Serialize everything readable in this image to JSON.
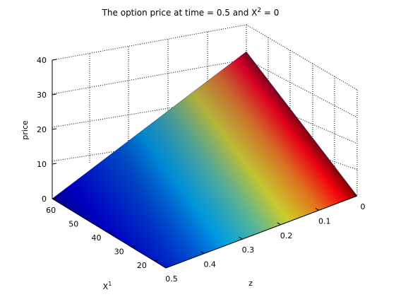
{
  "chart_data": {
    "type": "surface3d",
    "title": {
      "main": "The option price at time = 0.5 and X",
      "sup": "2",
      "tail": " = 0"
    },
    "xlabel": {
      "base": "X",
      "sup": "1"
    },
    "ylabel": "z",
    "zlabel": "price",
    "colormap": "jet",
    "grid": true,
    "axes": {
      "X1": {
        "range": [
          15,
          65
        ],
        "ticks": [
          20,
          30,
          40,
          50,
          60
        ]
      },
      "z": {
        "range": [
          0,
          0.5
        ],
        "ticks": [
          0,
          0.1,
          0.2,
          0.3,
          0.4,
          0.5
        ]
      },
      "price": {
        "range": [
          0,
          40
        ],
        "ticks": [
          0,
          10,
          20,
          30,
          40
        ]
      }
    },
    "surface_corners": [
      {
        "X1": 65,
        "z": 0.5,
        "price": 0
      },
      {
        "X1": 15,
        "z": 0.5,
        "price": 0
      },
      {
        "X1": 15,
        "z": 0,
        "price": 0
      },
      {
        "X1": 65,
        "z": 0,
        "price": 41
      }
    ]
  }
}
